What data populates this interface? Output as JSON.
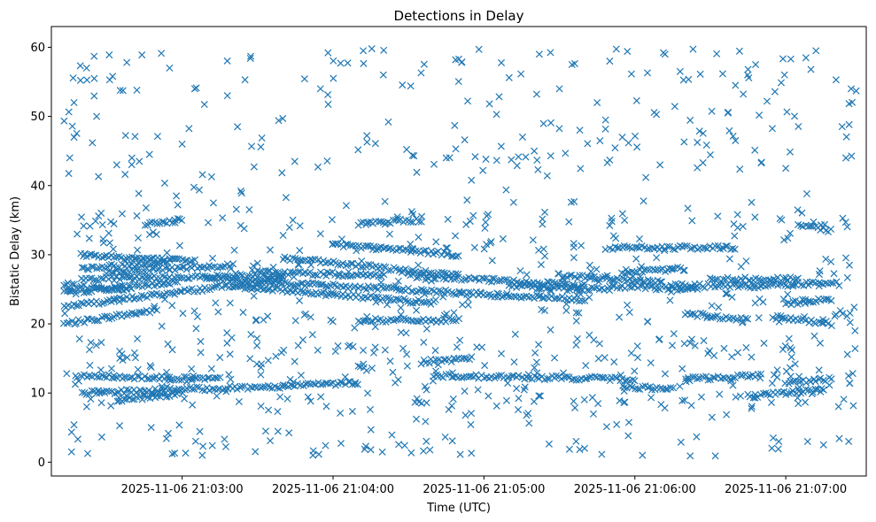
{
  "chart_data": {
    "type": "scatter",
    "title": "Detections in Delay",
    "xlabel": "Time (UTC)",
    "ylabel": "Bistatic Delay (km)",
    "x_unit": "seconds",
    "x_ticks": [
      {
        "t": "2025-11-06T21:03:00",
        "label": "2025-11-06 21:03:00"
      },
      {
        "t": "2025-11-06T21:04:00",
        "label": "2025-11-06 21:04:00"
      },
      {
        "t": "2025-11-06T21:05:00",
        "label": "2025-11-06 21:05:00"
      },
      {
        "t": "2025-11-06T21:06:00",
        "label": "2025-11-06 21:06:00"
      },
      {
        "t": "2025-11-06T21:07:00",
        "label": "2025-11-06 21:07:00"
      }
    ],
    "xlim": [
      "2025-11-06T21:02:08",
      "2025-11-06T21:07:32"
    ],
    "ylim": [
      -2.0,
      63.0
    ],
    "y_ticks": [
      0,
      10,
      20,
      30,
      40,
      50,
      60
    ],
    "grid": false,
    "marker": "x",
    "color": "#1f77b4",
    "series": [
      {
        "tracks": [
          {
            "t0": "2025-11-06T21:02:13",
            "t1": "2025-11-06T21:02:50",
            "y0": 20.0,
            "y1": 22.0
          },
          {
            "t0": "2025-11-06T21:02:13",
            "t1": "2025-11-06T21:03:40",
            "y0": 22.5,
            "y1": 26.5
          },
          {
            "t0": "2025-11-06T21:02:13",
            "t1": "2025-11-06T21:02:58",
            "y0": 24.5,
            "y1": 26.0
          },
          {
            "t0": "2025-11-06T21:02:13",
            "t1": "2025-11-06T21:02:40",
            "y0": 25.5,
            "y1": 25.0
          },
          {
            "t0": "2025-11-06T21:02:20",
            "t1": "2025-11-06T21:03:40",
            "y0": 26.5,
            "y1": 27.0
          },
          {
            "t0": "2025-11-06T21:02:20",
            "t1": "2025-11-06T21:02:55",
            "y0": 28.0,
            "y1": 29.0
          },
          {
            "t0": "2025-11-06T21:02:20",
            "t1": "2025-11-06T21:03:05",
            "y0": 30.0,
            "y1": 29.0
          },
          {
            "t0": "2025-11-06T21:02:30",
            "t1": "2025-11-06T21:03:20",
            "y0": 27.5,
            "y1": 28.5
          },
          {
            "t0": "2025-11-06T21:02:45",
            "t1": "2025-11-06T21:03:00",
            "y0": 34.5,
            "y1": 35.0
          },
          {
            "t0": "2025-11-06T21:02:20",
            "t1": "2025-11-06T21:03:15",
            "y0": 12.5,
            "y1": 12.0
          },
          {
            "t0": "2025-11-06T21:02:20",
            "t1": "2025-11-06T21:03:40",
            "y0": 10.0,
            "y1": 11.0
          },
          {
            "t0": "2025-11-06T21:02:35",
            "t1": "2025-11-06T21:03:00",
            "y0": 9.0,
            "y1": 10.0
          },
          {
            "t0": "2025-11-06T21:03:10",
            "t1": "2025-11-06T21:04:50",
            "y0": 26.5,
            "y1": 24.5
          },
          {
            "t0": "2025-11-06T21:03:20",
            "t1": "2025-11-06T21:04:40",
            "y0": 25.5,
            "y1": 23.0
          },
          {
            "t0": "2025-11-06T21:03:30",
            "t1": "2025-11-06T21:04:20",
            "y0": 27.5,
            "y1": 27.0
          },
          {
            "t0": "2025-11-06T21:03:40",
            "t1": "2025-11-06T21:04:50",
            "y0": 29.5,
            "y1": 27.0
          },
          {
            "t0": "2025-11-06T21:03:40",
            "t1": "2025-11-06T21:04:10",
            "y0": 11.0,
            "y1": 11.5
          },
          {
            "t0": "2025-11-06T21:04:00",
            "t1": "2025-11-06T21:04:50",
            "y0": 31.5,
            "y1": 30.0
          },
          {
            "t0": "2025-11-06T21:04:10",
            "t1": "2025-11-06T21:04:35",
            "y0": 34.5,
            "y1": 35.0
          },
          {
            "t0": "2025-11-06T21:04:10",
            "t1": "2025-11-06T21:04:50",
            "y0": 20.5,
            "y1": 20.5
          },
          {
            "t0": "2025-11-06T21:04:30",
            "t1": "2025-11-06T21:05:40",
            "y0": 27.0,
            "y1": 25.5
          },
          {
            "t0": "2025-11-06T21:04:50",
            "t1": "2025-11-06T21:05:40",
            "y0": 24.5,
            "y1": 23.5
          },
          {
            "t0": "2025-11-06T21:04:35",
            "t1": "2025-11-06T21:04:55",
            "y0": 14.5,
            "y1": 15.0
          },
          {
            "t0": "2025-11-06T21:04:40",
            "t1": "2025-11-06T21:06:00",
            "y0": 12.5,
            "y1": 12.0
          },
          {
            "t0": "2025-11-06T21:05:10",
            "t1": "2025-11-06T21:05:50",
            "y0": 25.5,
            "y1": 25.0
          },
          {
            "t0": "2025-11-06T21:05:30",
            "t1": "2025-11-06T21:06:10",
            "y0": 27.0,
            "y1": 26.0
          },
          {
            "t0": "2025-11-06T21:05:50",
            "t1": "2025-11-06T21:06:25",
            "y0": 25.5,
            "y1": 25.0
          },
          {
            "t0": "2025-11-06T21:05:50",
            "t1": "2025-11-06T21:06:40",
            "y0": 31.0,
            "y1": 31.0
          },
          {
            "t0": "2025-11-06T21:05:55",
            "t1": "2025-11-06T21:06:20",
            "y0": 27.5,
            "y1": 28.0
          },
          {
            "t0": "2025-11-06T21:05:55",
            "t1": "2025-11-06T21:06:15",
            "y0": 11.0,
            "y1": 10.5
          },
          {
            "t0": "2025-11-06T21:06:15",
            "t1": "2025-11-06T21:06:50",
            "y0": 25.5,
            "y1": 25.5
          },
          {
            "t0": "2025-11-06T21:06:20",
            "t1": "2025-11-06T21:06:45",
            "y0": 21.5,
            "y1": 20.5
          },
          {
            "t0": "2025-11-06T21:06:20",
            "t1": "2025-11-06T21:06:50",
            "y0": 12.0,
            "y1": 12.5
          },
          {
            "t0": "2025-11-06T21:06:30",
            "t1": "2025-11-06T21:07:05",
            "y0": 26.5,
            "y1": 26.5
          },
          {
            "t0": "2025-11-06T21:06:50",
            "t1": "2025-11-06T21:07:20",
            "y0": 25.5,
            "y1": 26.0
          },
          {
            "t0": "2025-11-06T21:06:45",
            "t1": "2025-11-06T21:07:15",
            "y0": 9.5,
            "y1": 10.5
          },
          {
            "t0": "2025-11-06T21:07:00",
            "t1": "2025-11-06T21:07:18",
            "y0": 11.5,
            "y1": 12.0
          },
          {
            "t0": "2025-11-06T21:07:00",
            "t1": "2025-11-06T21:07:18",
            "y0": 23.0,
            "y1": 23.5
          },
          {
            "t0": "2025-11-06T21:07:05",
            "t1": "2025-11-06T21:07:18",
            "y0": 34.5,
            "y1": 33.5
          },
          {
            "t0": "2025-11-06T21:06:55",
            "t1": "2025-11-06T21:07:18",
            "y0": 21.0,
            "y1": 20.0
          }
        ],
        "scatter": [
          {
            "t": "2025-11-06T21:02:17",
            "y": 5.4
          },
          {
            "t": "2025-11-06T21:02:17",
            "y": 52.0
          },
          {
            "t": "2025-11-06T21:02:17",
            "y": 47.0
          },
          {
            "t": "2025-11-06T21:02:22",
            "y": 57.0
          },
          {
            "t": "2025-11-06T21:02:25",
            "y": 58.7
          },
          {
            "t": "2025-11-06T21:02:26",
            "y": 50.0
          },
          {
            "t": "2025-11-06T21:02:31",
            "y": 58.9
          },
          {
            "t": "2025-11-06T21:02:34",
            "y": 43.0
          },
          {
            "t": "2025-11-06T21:02:38",
            "y": 57.8
          },
          {
            "t": "2025-11-06T21:02:42",
            "y": 53.8
          },
          {
            "t": "2025-11-06T21:02:44",
            "y": 58.9
          },
          {
            "t": "2025-11-06T21:02:47",
            "y": 44.5
          },
          {
            "t": "2025-11-06T21:02:55",
            "y": 57.0
          },
          {
            "t": "2025-11-06T21:02:57",
            "y": 1.3
          },
          {
            "t": "2025-11-06T21:03:05",
            "y": 54.0
          },
          {
            "t": "2025-11-06T21:03:08",
            "y": 1.0
          },
          {
            "t": "2025-11-06T21:03:12",
            "y": 2.4
          },
          {
            "t": "2025-11-06T21:03:18",
            "y": 53.0
          },
          {
            "t": "2025-11-06T21:03:25",
            "y": 55.3
          },
          {
            "t": "2025-11-06T21:03:35",
            "y": 3.1
          },
          {
            "t": "2025-11-06T21:03:40",
            "y": 49.7
          },
          {
            "t": "2025-11-06T21:03:52",
            "y": 1.0
          },
          {
            "t": "2025-11-06T21:03:55",
            "y": 54.0
          },
          {
            "t": "2025-11-06T21:03:58",
            "y": 59.2
          },
          {
            "t": "2025-11-06T21:04:03",
            "y": 57.7
          },
          {
            "t": "2025-11-06T21:04:12",
            "y": 59.5
          },
          {
            "t": "2025-11-06T21:04:15",
            "y": 1.8
          },
          {
            "t": "2025-11-06T21:04:20",
            "y": 56.0
          },
          {
            "t": "2025-11-06T21:04:22",
            "y": 49.2
          },
          {
            "t": "2025-11-06T21:04:35",
            "y": 56.3
          },
          {
            "t": "2025-11-06T21:04:50",
            "y": 58.3
          },
          {
            "t": "2025-11-06T21:04:55",
            "y": 1.3
          },
          {
            "t": "2025-11-06T21:04:58",
            "y": 59.7
          },
          {
            "t": "2025-11-06T21:05:05",
            "y": 50.3
          },
          {
            "t": "2025-11-06T21:05:10",
            "y": 55.6
          },
          {
            "t": "2025-11-06T21:05:22",
            "y": 59.0
          },
          {
            "t": "2025-11-06T21:05:30",
            "y": 54.0
          },
          {
            "t": "2025-11-06T21:05:35",
            "y": 57.5
          },
          {
            "t": "2025-11-06T21:05:40",
            "y": 2.0
          },
          {
            "t": "2025-11-06T21:05:45",
            "y": 52.0
          },
          {
            "t": "2025-11-06T21:05:50",
            "y": 58.0
          },
          {
            "t": "2025-11-06T21:05:55",
            "y": 47.0
          },
          {
            "t": "2025-11-06T21:06:03",
            "y": 1.0
          },
          {
            "t": "2025-11-06T21:06:12",
            "y": 59.0
          },
          {
            "t": "2025-11-06T21:06:18",
            "y": 56.5
          },
          {
            "t": "2025-11-06T21:06:22",
            "y": 0.9
          },
          {
            "t": "2025-11-06T21:06:32",
            "y": 0.9
          },
          {
            "t": "2025-11-06T21:06:37",
            "y": 50.5
          },
          {
            "t": "2025-11-06T21:06:48",
            "y": 57.5
          },
          {
            "t": "2025-11-06T21:06:55",
            "y": 3.5
          },
          {
            "t": "2025-11-06T21:07:02",
            "y": 58.3
          },
          {
            "t": "2025-11-06T21:07:10",
            "y": 56.8
          },
          {
            "t": "2025-11-06T21:07:12",
            "y": 59.5
          },
          {
            "t": "2025-11-06T21:07:15",
            "y": 2.5
          },
          {
            "t": "2025-11-06T21:07:20",
            "y": 55.3
          },
          {
            "t": "2025-11-06T21:07:26",
            "y": 54.0
          },
          {
            "t": "2025-11-06T21:07:28",
            "y": 53.7
          },
          {
            "t": "2025-11-06T21:07:25",
            "y": 3.0
          },
          {
            "t": "2025-11-06T21:06:05",
            "y": 56.3
          },
          {
            "t": "2025-11-06T21:05:57",
            "y": 59.4
          },
          {
            "t": "2025-11-06T21:06:40",
            "y": 54.5
          },
          {
            "t": "2025-11-06T21:06:45",
            "y": 56.8
          },
          {
            "t": "2025-11-06T21:02:40",
            "y": 44.0
          },
          {
            "t": "2025-11-06T21:03:00",
            "y": 46.0
          },
          {
            "t": "2025-11-06T21:03:22",
            "y": 48.5
          },
          {
            "t": "2025-11-06T21:04:45",
            "y": 44.0
          },
          {
            "t": "2025-11-06T21:05:20",
            "y": 45.0
          },
          {
            "t": "2025-11-06T21:06:10",
            "y": 43.0
          },
          {
            "t": "2025-11-06T21:06:40",
            "y": 46.5
          },
          {
            "t": "2025-11-06T21:07:00",
            "y": 42.5
          }
        ],
        "noise_count": 820,
        "noise_seed": 7
      }
    ]
  }
}
